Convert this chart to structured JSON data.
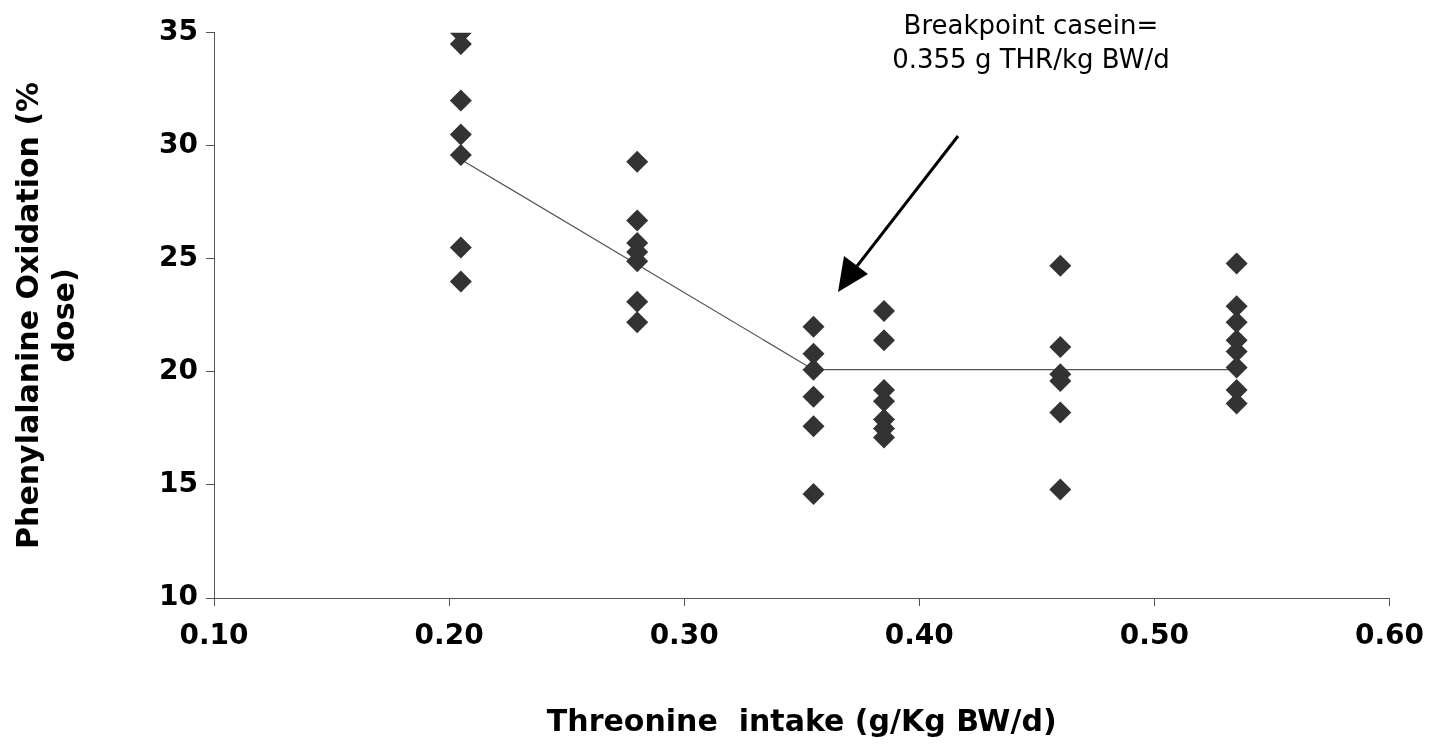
{
  "chart_data": {
    "type": "scatter",
    "xlabel": "Threonine  intake (g/Kg BW/d)",
    "ylabel": "Phenylalanine Oxidation (% dose)",
    "xlim": [
      0.1,
      0.6
    ],
    "xticks": [
      {
        "value": 0.1,
        "label": "0.10"
      },
      {
        "value": 0.2,
        "label": "0.20"
      },
      {
        "value": 0.3,
        "label": "0.30"
      },
      {
        "value": 0.4,
        "label": "0.40"
      },
      {
        "value": 0.5,
        "label": "0.50"
      },
      {
        "value": 0.6,
        "label": "0.60"
      }
    ],
    "ylim": [
      10,
      35
    ],
    "yticks": [
      10,
      15,
      20,
      25,
      30,
      35
    ],
    "grid": false,
    "legend": false,
    "series": [
      {
        "type": "scatter",
        "marker": "diamond",
        "color": "#333333",
        "x": [
          0.205,
          0.205,
          0.205,
          0.205,
          0.205,
          0.205,
          0.205,
          0.28,
          0.28,
          0.28,
          0.28,
          0.28,
          0.28,
          0.28,
          0.355,
          0.355,
          0.355,
          0.355,
          0.355,
          0.355,
          0.385,
          0.385,
          0.385,
          0.385,
          0.385,
          0.385,
          0.385,
          0.46,
          0.46,
          0.46,
          0.46,
          0.46,
          0.46,
          0.535,
          0.535,
          0.535,
          0.535,
          0.535,
          0.535,
          0.535,
          0.535
        ],
        "values": [
          35.0,
          34.5,
          32.0,
          30.5,
          29.6,
          25.5,
          24.0,
          29.3,
          26.7,
          25.7,
          25.3,
          24.9,
          23.1,
          22.2,
          22.0,
          20.8,
          20.1,
          18.9,
          17.6,
          14.6,
          22.7,
          21.4,
          19.2,
          18.7,
          17.9,
          17.5,
          17.1,
          24.7,
          21.1,
          19.9,
          19.6,
          18.2,
          14.8,
          24.8,
          22.9,
          22.2,
          21.4,
          20.9,
          20.2,
          19.2,
          18.6
        ]
      },
      {
        "type": "line",
        "color": "#555555",
        "x": [
          0.205,
          0.355,
          0.535
        ],
        "values": [
          29.4,
          20.1,
          20.1
        ]
      }
    ],
    "annotations": [
      "Breakpoint casein= 0.355 g THR/kg BW/d"
    ]
  }
}
